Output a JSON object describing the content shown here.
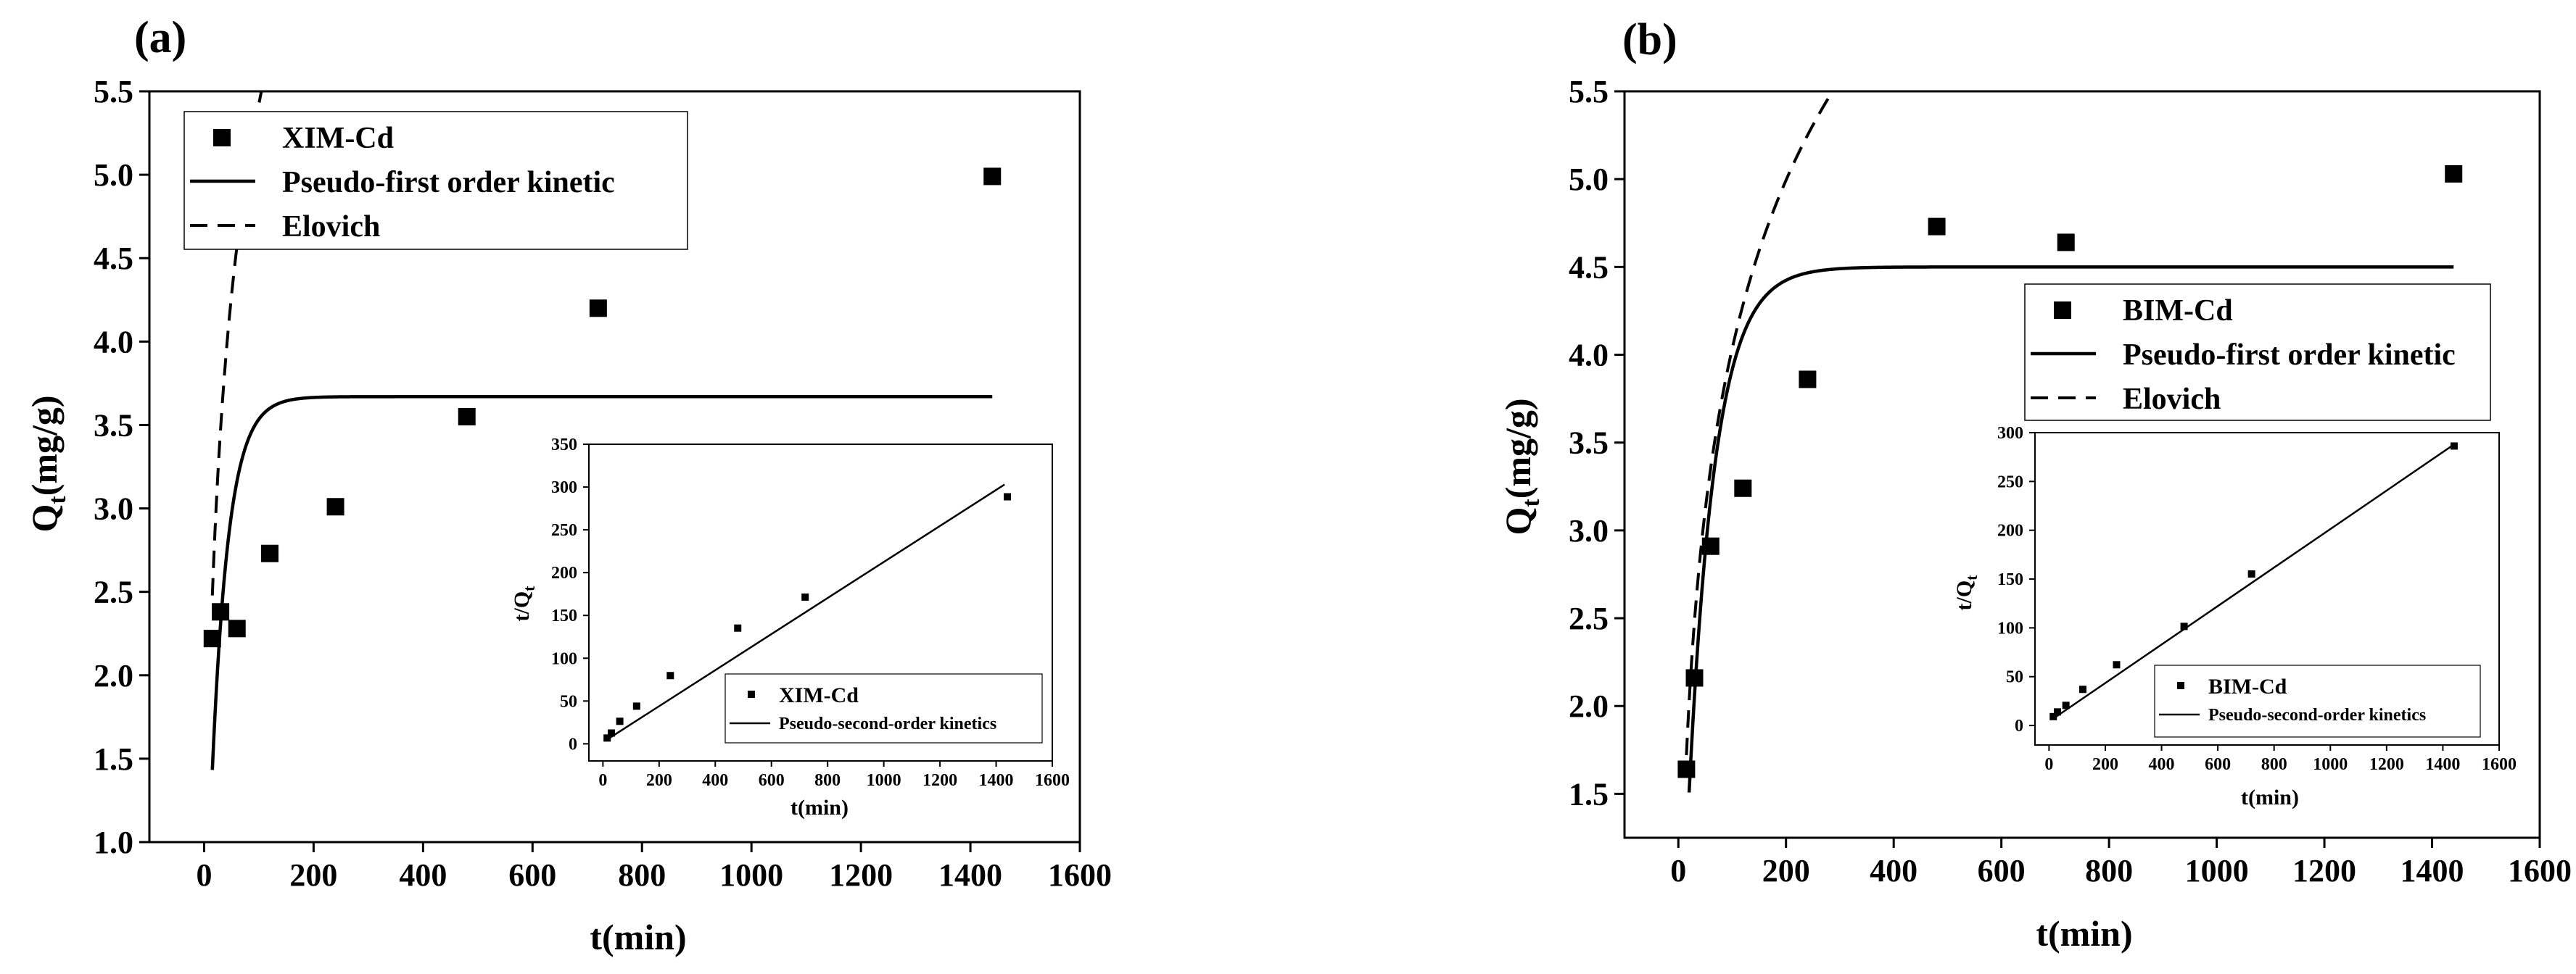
{
  "chart_data": [
    {
      "panel": "(a)",
      "type": "scatter",
      "xlabel": "t(min)",
      "ylabel_main": "Q",
      "ylabel_sub": "t",
      "ylabel_unit": "(mg/g)",
      "xlim": [
        -100,
        1600
      ],
      "ylim": [
        1.0,
        5.5
      ],
      "xticks": [
        0,
        200,
        400,
        600,
        800,
        1000,
        1200,
        1400,
        1600
      ],
      "yticks": [
        1.0,
        1.5,
        2.0,
        2.5,
        3.0,
        3.5,
        4.0,
        4.5,
        5.0,
        5.5
      ],
      "legend_position": "top-left",
      "points": {
        "name": "XIM-Cd",
        "x": [
          15,
          30,
          60,
          120,
          240,
          480,
          720,
          1440
        ],
        "y": [
          2.22,
          2.38,
          2.28,
          2.73,
          3.01,
          3.55,
          4.2,
          4.99
        ]
      },
      "pfo": {
        "name": "Pseudo-first order kinetic",
        "qe": 3.67,
        "k": 0.033,
        "x_start": 15,
        "x_end": 1440
      },
      "elovich": {
        "name": "Elovich",
        "a": 0.36,
        "b": 0.564,
        "x_start": 15,
        "x_end": 1440
      },
      "inset": {
        "type": "scatter",
        "xlabel": "t(min)",
        "ylabel_main": "t/Q",
        "ylabel_sub": "t",
        "xlim": [
          -50,
          1600
        ],
        "ylim": [
          -20,
          350
        ],
        "xticks": [
          0,
          200,
          400,
          600,
          800,
          1000,
          1200,
          1400,
          1600
        ],
        "yticks": [
          0,
          50,
          100,
          150,
          200,
          250,
          300,
          350
        ],
        "legend_position": "bottom-right",
        "points": {
          "name": "XIM-Cd",
          "x": [
            15,
            30,
            60,
            120,
            240,
            480,
            720,
            1440
          ],
          "y": [
            6.8,
            12.6,
            26.3,
            44.0,
            79.7,
            135.2,
            171.4,
            288.6
          ]
        },
        "fit": {
          "name": "Pseudo-second-order kinetics",
          "x": [
            15,
            1430
          ],
          "y": [
            5,
            303
          ]
        }
      }
    },
    {
      "panel": "(b)",
      "type": "scatter",
      "xlabel": "t(min)",
      "ylabel_main": "Q",
      "ylabel_sub": "t",
      "ylabel_unit": "(mg/g)",
      "xlim": [
        -100,
        1600
      ],
      "ylim": [
        1.25,
        5.5
      ],
      "xticks": [
        0,
        200,
        400,
        600,
        800,
        1000,
        1200,
        1400,
        1600
      ],
      "yticks": [
        1.5,
        2.0,
        2.5,
        3.0,
        3.5,
        4.0,
        4.5,
        5.0,
        5.5
      ],
      "legend_position": "center-right",
      "points": {
        "name": "BIM-Cd",
        "x": [
          15,
          30,
          60,
          120,
          240,
          480,
          720,
          1440
        ],
        "y": [
          1.64,
          2.16,
          2.91,
          3.24,
          3.86,
          4.73,
          4.64,
          5.03
        ]
      },
      "pfo": {
        "name": "Pseudo-first order kinetic",
        "qe": 4.5,
        "k": 0.0204,
        "x_start": 20,
        "x_end": 1440
      },
      "elovich": {
        "name": "Elovich",
        "a": 0.22,
        "b": 0.69,
        "x_start": 15,
        "x_end": 1440
      },
      "inset": {
        "type": "scatter",
        "xlabel": "t(min)",
        "ylabel_main": "t/Q",
        "ylabel_sub": "t",
        "xlim": [
          -50,
          1600
        ],
        "ylim": [
          -20,
          300
        ],
        "xticks": [
          0,
          200,
          400,
          600,
          800,
          1000,
          1200,
          1400,
          1600
        ],
        "yticks": [
          0,
          50,
          100,
          150,
          200,
          250,
          300
        ],
        "legend_position": "bottom-right",
        "points": {
          "name": "BIM-Cd",
          "x": [
            15,
            30,
            60,
            120,
            240,
            480,
            720,
            1440
          ],
          "y": [
            9.1,
            13.9,
            20.6,
            37.0,
            62.2,
            101.5,
            155.2,
            286.3
          ]
        },
        "fit": {
          "name": "Pseudo-second-order kinetics",
          "x": [
            15,
            1440
          ],
          "y": [
            7,
            288
          ]
        }
      }
    }
  ]
}
